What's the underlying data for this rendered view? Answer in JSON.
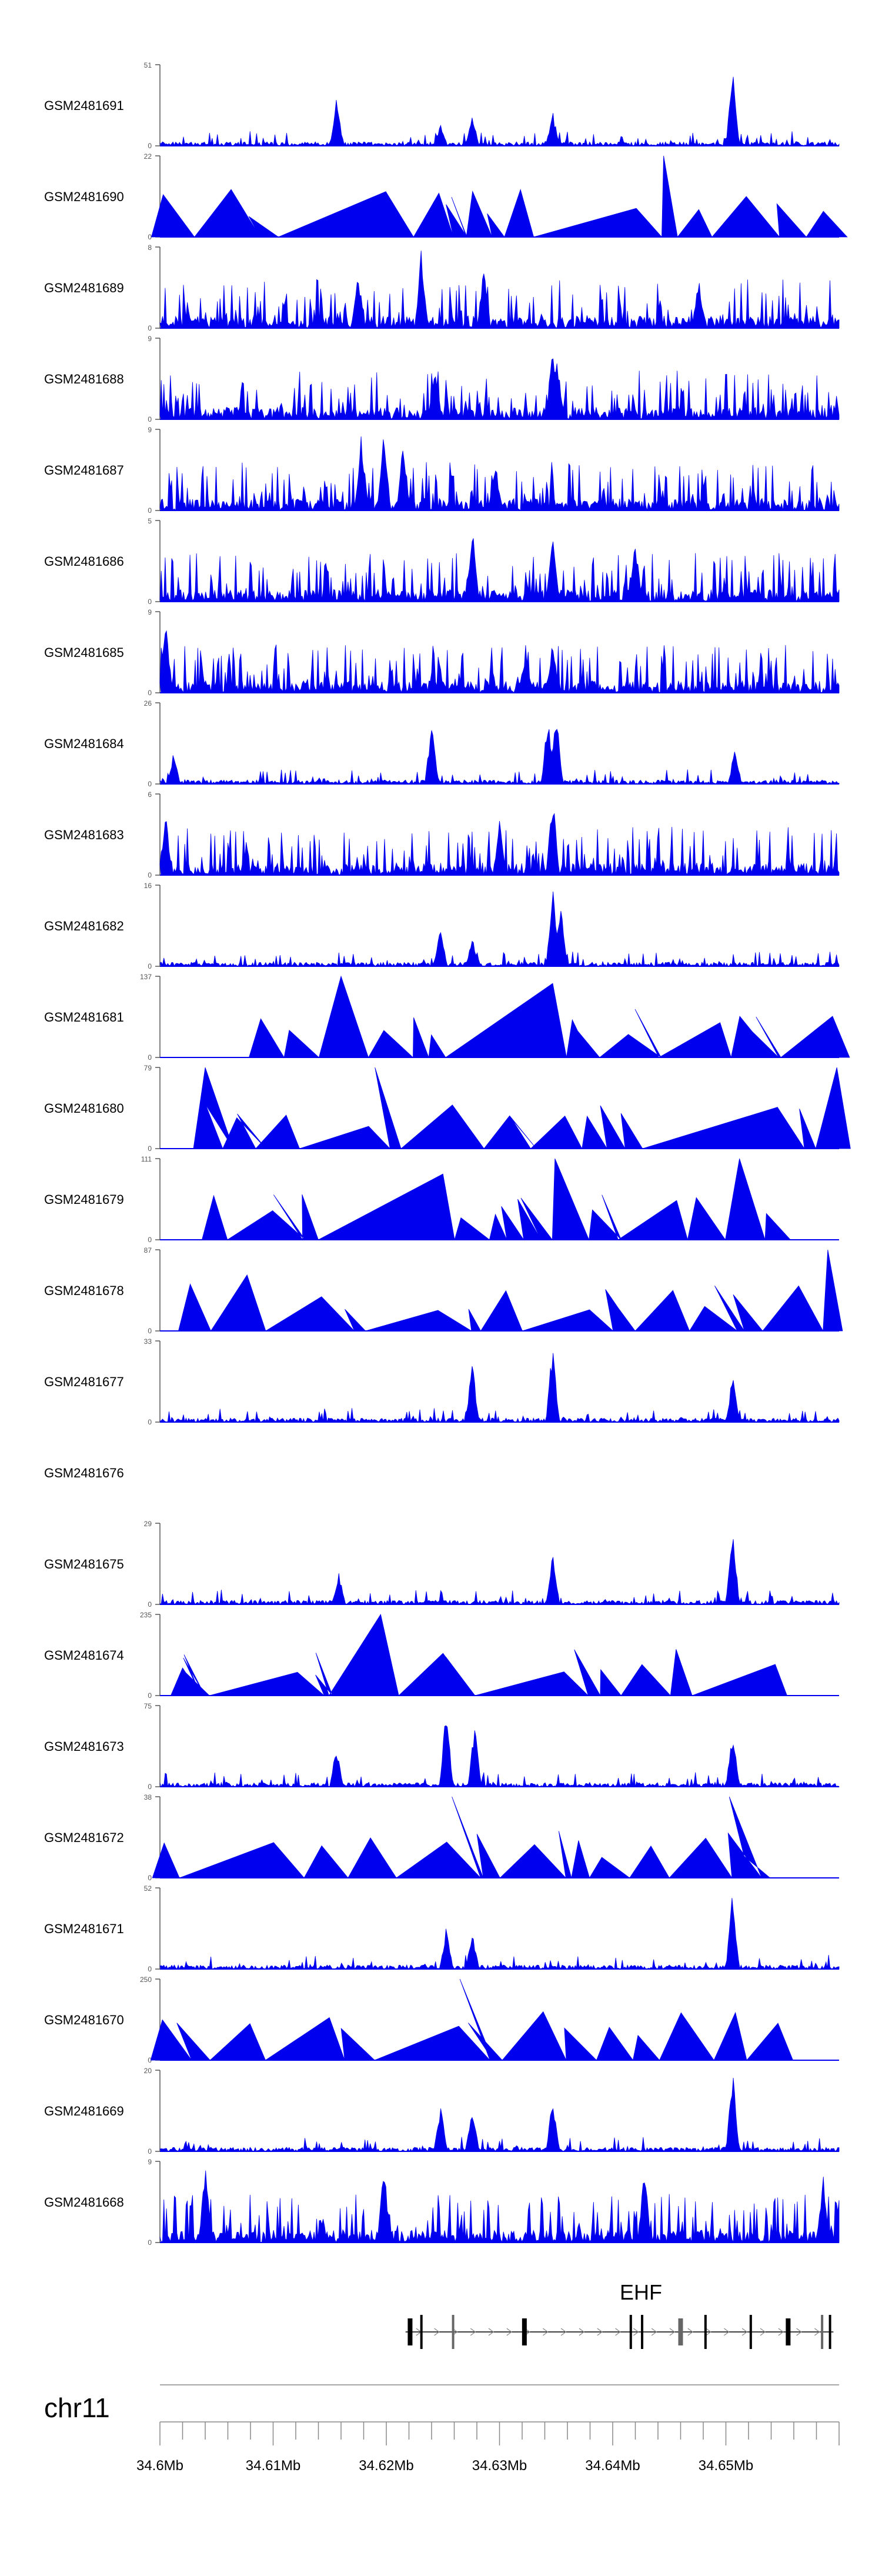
{
  "chart_data": {
    "type": "area",
    "title": "",
    "chromosome": "chr11",
    "genomic_range_mb": [
      34.6,
      34.66
    ],
    "x_ticks": [
      "34.6Mb",
      "34.61Mb",
      "34.62Mb",
      "34.63Mb",
      "34.64Mb",
      "34.65Mb"
    ],
    "x_tick_values_mb": [
      34.6,
      34.61,
      34.62,
      34.63,
      34.64,
      34.65
    ],
    "gene": {
      "name": "EHF",
      "strand": "+",
      "start_mb": 34.6217,
      "end_mb": 34.6595,
      "exons_mb": [
        34.6221,
        34.6231,
        34.6259,
        34.6322,
        34.6416,
        34.6426,
        34.646,
        34.6482,
        34.6522,
        34.6555,
        34.6585,
        34.6592
      ]
    },
    "series_color": "#0000ee",
    "tracks": [
      {
        "name": "GSM2481691",
        "ymax": 51,
        "ytick_labels": [
          "51",
          "0"
        ],
        "peaks": [
          [
            34.6156,
            30
          ],
          [
            34.6248,
            15
          ],
          [
            34.6276,
            20
          ],
          [
            34.6347,
            22
          ],
          [
            34.6506,
            51
          ]
        ],
        "style": "noise"
      },
      {
        "name": "GSM2481690",
        "ymax": 22,
        "ytick_labels": [
          "22",
          "0"
        ],
        "peaks": [
          [
            34.6445,
            22
          ],
          [
            34.6518,
            11
          ]
        ],
        "style": "wide"
      },
      {
        "name": "GSM2481689",
        "ymax": 8,
        "ytick_labels": [
          "8",
          "0"
        ],
        "peaks": [
          [
            34.6175,
            6
          ],
          [
            34.6231,
            8
          ],
          [
            34.6286,
            6
          ],
          [
            34.6476,
            5
          ]
        ],
        "style": "dense"
      },
      {
        "name": "GSM2481688",
        "ymax": 9,
        "ytick_labels": [
          "9",
          "0"
        ],
        "peaks": [
          [
            34.6243,
            6
          ],
          [
            34.6347,
            9
          ],
          [
            34.6351,
            7
          ]
        ],
        "style": "dense"
      },
      {
        "name": "GSM2481687",
        "ymax": 9,
        "ytick_labels": [
          "9",
          "0"
        ],
        "peaks": [
          [
            34.6178,
            9
          ],
          [
            34.6198,
            9
          ],
          [
            34.6215,
            8
          ],
          [
            34.6296,
            6
          ]
        ],
        "style": "dense"
      },
      {
        "name": "GSM2481686",
        "ymax": 5,
        "ytick_labels": [
          "5",
          "0"
        ],
        "peaks": [
          [
            34.6276,
            5
          ],
          [
            34.6347,
            5
          ],
          [
            34.642,
            4
          ]
        ],
        "style": "dense"
      },
      {
        "name": "GSM2481685",
        "ymax": 9,
        "ytick_labels": [
          "9",
          "0"
        ],
        "peaks": [
          [
            34.6005,
            9
          ],
          [
            34.6323,
            5
          ],
          [
            34.6347,
            6
          ]
        ],
        "style": "dense"
      },
      {
        "name": "GSM2481684",
        "ymax": 26,
        "ytick_labels": [
          "26",
          "0"
        ],
        "peaks": [
          [
            34.6012,
            10
          ],
          [
            34.624,
            20
          ],
          [
            34.6343,
            24
          ],
          [
            34.635,
            26
          ],
          [
            34.6508,
            12
          ]
        ],
        "style": "noise"
      },
      {
        "name": "GSM2481683",
        "ymax": 6,
        "ytick_labels": [
          "6",
          "0"
        ],
        "peaks": [
          [
            34.6005,
            5
          ],
          [
            34.6347,
            6
          ],
          [
            34.63,
            4
          ]
        ],
        "style": "dense"
      },
      {
        "name": "GSM2481682",
        "ymax": 16,
        "ytick_labels": [
          "16",
          "0"
        ],
        "peaks": [
          [
            34.6248,
            8
          ],
          [
            34.6276,
            6
          ],
          [
            34.6347,
            16
          ],
          [
            34.6354,
            14
          ]
        ],
        "style": "noise"
      },
      {
        "name": "GSM2481681",
        "ymax": 137,
        "ytick_labels": [
          "137",
          "0"
        ],
        "peaks": [
          [
            34.616,
            137
          ],
          [
            34.6347,
            125
          ]
        ],
        "style": "wide"
      },
      {
        "name": "GSM2481680",
        "ymax": 79,
        "ytick_labels": [
          "79",
          "0"
        ],
        "peaks": [
          [
            34.604,
            79
          ],
          [
            34.619,
            79
          ],
          [
            34.6598,
            79
          ]
        ],
        "style": "wide"
      },
      {
        "name": "GSM2481679",
        "ymax": 111,
        "ytick_labels": [
          "111",
          "0"
        ],
        "peaks": [
          [
            34.625,
            90
          ],
          [
            34.6349,
            111
          ],
          [
            34.6512,
            111
          ]
        ],
        "style": "wide"
      },
      {
        "name": "GSM2481678",
        "ymax": 87,
        "ytick_labels": [
          "87",
          "0"
        ],
        "peaks": [
          [
            34.6077,
            60
          ],
          [
            34.659,
            87
          ]
        ],
        "style": "wide"
      },
      {
        "name": "GSM2481677",
        "ymax": 33,
        "ytick_labels": [
          "33",
          "0"
        ],
        "peaks": [
          [
            34.6276,
            25
          ],
          [
            34.6347,
            33
          ],
          [
            34.6506,
            20
          ]
        ],
        "style": "noise"
      },
      {
        "name": "GSM2481676",
        "ymax": null,
        "ytick_labels": [],
        "peaks": [],
        "style": "empty"
      },
      {
        "name": "GSM2481675",
        "ymax": 29,
        "ytick_labels": [
          "29",
          "0"
        ],
        "peaks": [
          [
            34.6158,
            12
          ],
          [
            34.6347,
            20
          ],
          [
            34.6506,
            29
          ]
        ],
        "style": "noise"
      },
      {
        "name": "GSM2481674",
        "ymax": 235,
        "ytick_labels": [
          "235",
          "0"
        ],
        "peaks": [
          [
            34.6195,
            235
          ],
          [
            34.602,
            80
          ]
        ],
        "style": "wide"
      },
      {
        "name": "GSM2481673",
        "ymax": 75,
        "ytick_labels": [
          "75",
          "0"
        ],
        "peaks": [
          [
            34.6156,
            40
          ],
          [
            34.6253,
            75
          ],
          [
            34.6278,
            60
          ],
          [
            34.6506,
            55
          ]
        ],
        "style": "noise"
      },
      {
        "name": "GSM2481672",
        "ymax": 38,
        "ytick_labels": [
          "38",
          "0"
        ],
        "peaks": [
          [
            34.6258,
            38
          ],
          [
            34.6503,
            38
          ]
        ],
        "style": "wide"
      },
      {
        "name": "GSM2481671",
        "ymax": 52,
        "ytick_labels": [
          "52",
          "0"
        ],
        "peaks": [
          [
            34.6253,
            28
          ],
          [
            34.6276,
            25
          ],
          [
            34.6506,
            52
          ]
        ],
        "style": "noise"
      },
      {
        "name": "GSM2481670",
        "ymax": 250,
        "ytick_labels": [
          "250",
          "0"
        ],
        "peaks": [
          [
            34.6265,
            250
          ]
        ],
        "style": "wide"
      },
      {
        "name": "GSM2481669",
        "ymax": 20,
        "ytick_labels": [
          "20",
          "0"
        ],
        "peaks": [
          [
            34.6248,
            12
          ],
          [
            34.6276,
            12
          ],
          [
            34.6347,
            14
          ],
          [
            34.6506,
            20
          ]
        ],
        "style": "noise"
      },
      {
        "name": "GSM2481668",
        "ymax": 9,
        "ytick_labels": [
          "9",
          "0"
        ],
        "peaks": [
          [
            34.604,
            9
          ],
          [
            34.6198,
            9
          ],
          [
            34.6428,
            9
          ],
          [
            34.6586,
            8
          ]
        ],
        "style": "dense"
      }
    ]
  }
}
